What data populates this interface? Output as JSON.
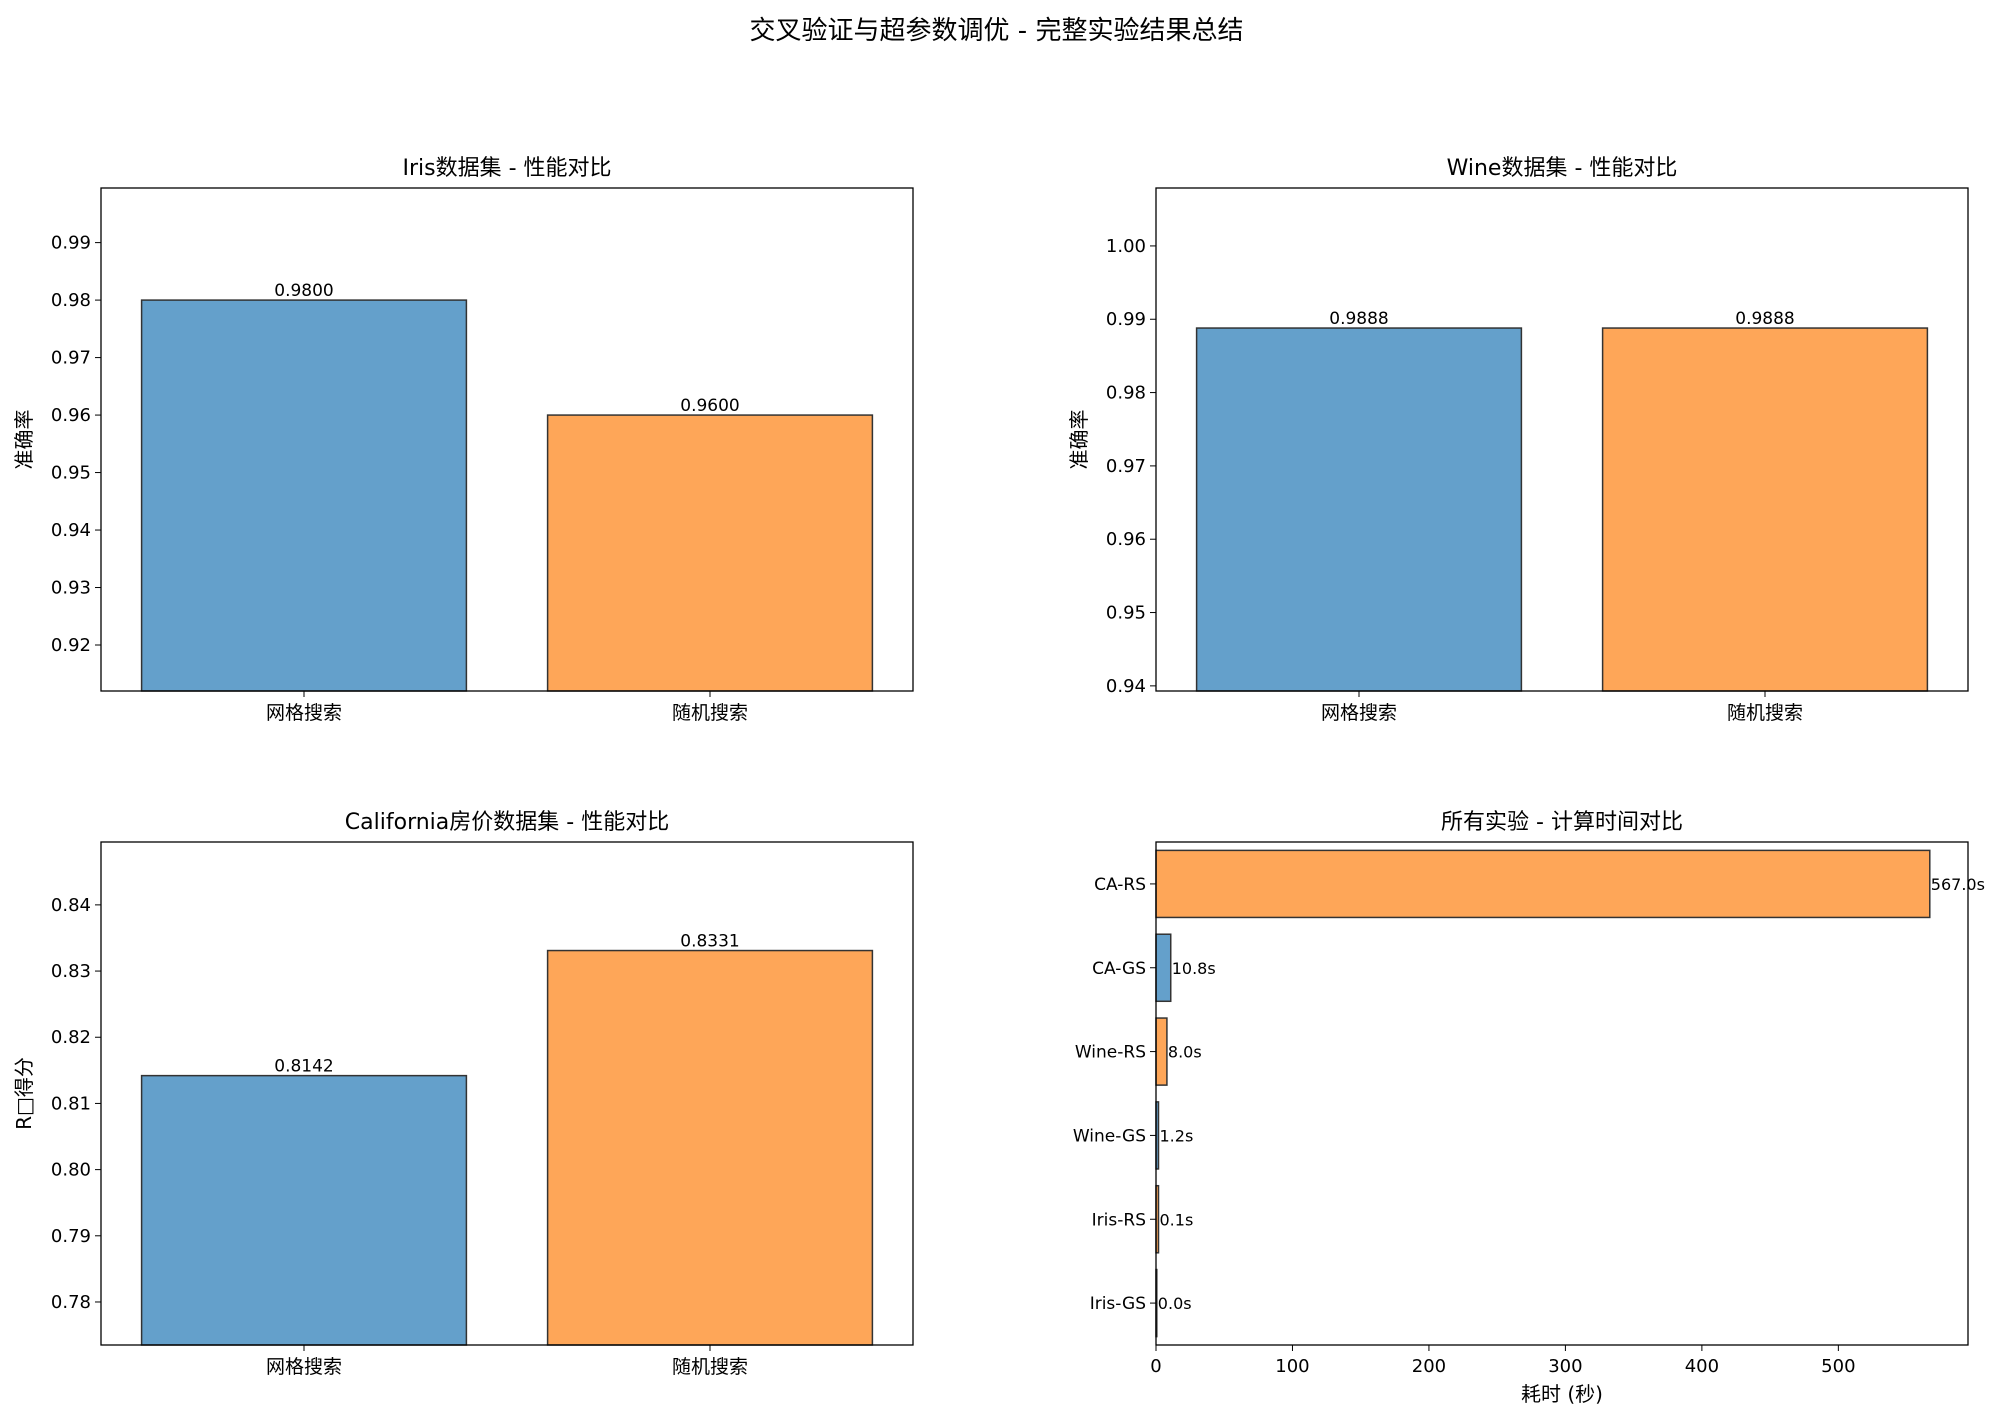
{
  "figure": {
    "suptitle": "交叉验证与超参数调优 - 完整实验结果总结"
  },
  "colors": {
    "blue": "#64a0cb",
    "orange": "#fea658",
    "edge": "#333333"
  },
  "chart_data": [
    {
      "type": "bar",
      "title": "Iris数据集 - 性能对比",
      "ylabel": "准确率",
      "xlabel": "",
      "categories": [
        "网格搜索",
        "随机搜索"
      ],
      "values": [
        0.98,
        0.96
      ],
      "value_labels": [
        "0.9800",
        "0.9600"
      ],
      "ylim": [
        0.912,
        0.9995
      ],
      "yticks": [
        0.92,
        0.93,
        0.94,
        0.95,
        0.96,
        0.97,
        0.98,
        0.99
      ],
      "ytick_labels": [
        "0.92",
        "0.93",
        "0.94",
        "0.95",
        "0.96",
        "0.97",
        "0.98",
        "0.99"
      ],
      "bar_colors": [
        "blue",
        "orange"
      ],
      "grid": false
    },
    {
      "type": "bar",
      "title": "Wine数据集 - 性能对比",
      "ylabel": "准确率",
      "xlabel": "",
      "categories": [
        "网格搜索",
        "随机搜索"
      ],
      "values": [
        0.9888,
        0.9888
      ],
      "value_labels": [
        "0.9888",
        "0.9888"
      ],
      "ylim": [
        0.9393,
        1.0079
      ],
      "yticks": [
        0.94,
        0.95,
        0.96,
        0.97,
        0.98,
        0.99,
        1.0
      ],
      "ytick_labels": [
        "0.94",
        "0.95",
        "0.96",
        "0.97",
        "0.98",
        "0.99",
        "1.00"
      ],
      "bar_colors": [
        "blue",
        "orange"
      ],
      "grid": false
    },
    {
      "type": "bar",
      "title": "California房价数据集 - 性能对比",
      "ylabel": "R□得分",
      "xlabel": "",
      "categories": [
        "网格搜索",
        "随机搜索"
      ],
      "values": [
        0.8142,
        0.8331
      ],
      "value_labels": [
        "0.8142",
        "0.8331"
      ],
      "ylim": [
        0.7735,
        0.8495
      ],
      "yticks": [
        0.78,
        0.79,
        0.8,
        0.81,
        0.82,
        0.83,
        0.84
      ],
      "ytick_labels": [
        "0.78",
        "0.79",
        "0.80",
        "0.81",
        "0.82",
        "0.83",
        "0.84"
      ],
      "bar_colors": [
        "blue",
        "orange"
      ],
      "grid": false
    },
    {
      "type": "barh",
      "title": "所有实验 - 计算时间对比",
      "xlabel": "耗时 (秒)",
      "ylabel": "",
      "categories": [
        "Iris-GS",
        "Iris-RS",
        "Wine-GS",
        "Wine-RS",
        "CA-GS",
        "CA-RS"
      ],
      "values": [
        0.0,
        0.1,
        1.2,
        8.0,
        10.8,
        567.0
      ],
      "value_labels": [
        "0.0s",
        "0.1s",
        "1.2s",
        "8.0s",
        "10.8s",
        "567.0s"
      ],
      "xlim": [
        0,
        595
      ],
      "xticks": [
        0,
        100,
        200,
        300,
        400,
        500
      ],
      "xtick_labels": [
        "0",
        "100",
        "200",
        "300",
        "400",
        "500"
      ],
      "bar_colors": [
        "blue",
        "orange",
        "blue",
        "orange",
        "blue",
        "orange"
      ],
      "grid": false
    }
  ]
}
